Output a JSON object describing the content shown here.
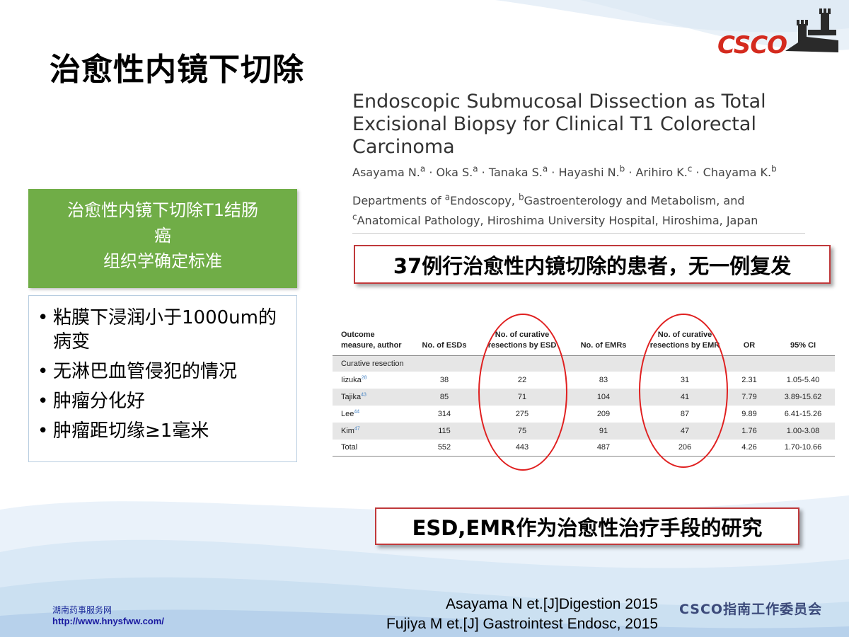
{
  "slide": {
    "title": "治愈性内镜下切除"
  },
  "logo": {
    "text": "CSCO"
  },
  "paper": {
    "title_lines": [
      "Endoscopic Submucosal Dissection as Total",
      "Excisional Biopsy for Clinical T1 Colorectal",
      "Carcinoma"
    ],
    "authors": [
      {
        "name": "Asayama N.",
        "sup": "a"
      },
      {
        "name": "Oka S.",
        "sup": "a"
      },
      {
        "name": "Tanaka S.",
        "sup": "a"
      },
      {
        "name": "Hayashi N.",
        "sup": "b"
      },
      {
        "name": "Arihiro K.",
        "sup": "c"
      },
      {
        "name": "Chayama K.",
        "sup": "b"
      }
    ],
    "author_sep": " · ",
    "dept": {
      "prefix": "Departments of ",
      "sup_a": "a",
      "part_a": "Endoscopy, ",
      "sup_b": "b",
      "part_b": "Gastroenterology and Metabolism, and",
      "sup_c": "c",
      "part_c": "Anatomical Pathology, Hiroshima University Hospital, Hiroshima, Japan"
    }
  },
  "callouts": {
    "top": "37例行治愈性内镜切除的患者，无一例复发",
    "bottom": "ESD,EMR作为治愈性治疗手段的研究"
  },
  "green_box": {
    "line1": "治愈性内镜下切除T1结肠",
    "line2": "癌",
    "line3": "组织学确定标准"
  },
  "criteria": [
    "粘膜下浸润小于1000um的病变",
    "无淋巴血管侵犯的情况",
    "肿瘤分化好",
    "肿瘤距切缘≥1毫米"
  ],
  "table": {
    "headers": {
      "outcome": [
        "Outcome",
        "measure, author"
      ],
      "esds": "No. of ESDs",
      "curative_esd": [
        "No. of curative",
        "resections by ESD"
      ],
      "emrs": "No. of EMRs",
      "curative_emr": [
        "No. of curative",
        "resections by EMR"
      ],
      "or": "OR",
      "ci": "95% CI"
    },
    "section": "Curative resection",
    "rows": [
      {
        "author": "Iizuka",
        "ref": "28",
        "esds": "38",
        "cur_esd": "22",
        "emrs": "83",
        "cur_emr": "31",
        "or": "2.31",
        "ci": "1.05-5.40"
      },
      {
        "author": "Tajika",
        "ref": "43",
        "esds": "85",
        "cur_esd": "71",
        "emrs": "104",
        "cur_emr": "41",
        "or": "7.79",
        "ci": "3.89-15.62"
      },
      {
        "author": "Lee",
        "ref": "44",
        "esds": "314",
        "cur_esd": "275",
        "emrs": "209",
        "cur_emr": "87",
        "or": "9.89",
        "ci": "6.41-15.26"
      },
      {
        "author": "Kim",
        "ref": "47",
        "esds": "115",
        "cur_esd": "75",
        "emrs": "91",
        "cur_emr": "47",
        "or": "1.76",
        "ci": "1.00-3.08"
      },
      {
        "author": "Total",
        "ref": "",
        "esds": "552",
        "cur_esd": "443",
        "emrs": "487",
        "cur_emr": "206",
        "or": "4.26",
        "ci": "1.70-10.66"
      }
    ]
  },
  "citations": [
    "Asayama N et.[J]Digestion 2015",
    "Fujiya M et.[J] Gastrointest Endosc, 2015"
  ],
  "footer_org": "CSCO指南工作委员会",
  "watermark": {
    "name": "湖南药事服务网",
    "url": "http://www.hnysfww.com/"
  },
  "colors": {
    "green": "#70ad47",
    "callout_border": "#c0393b",
    "ellipse": "#e02020",
    "logo_red": "#d42a1e"
  }
}
